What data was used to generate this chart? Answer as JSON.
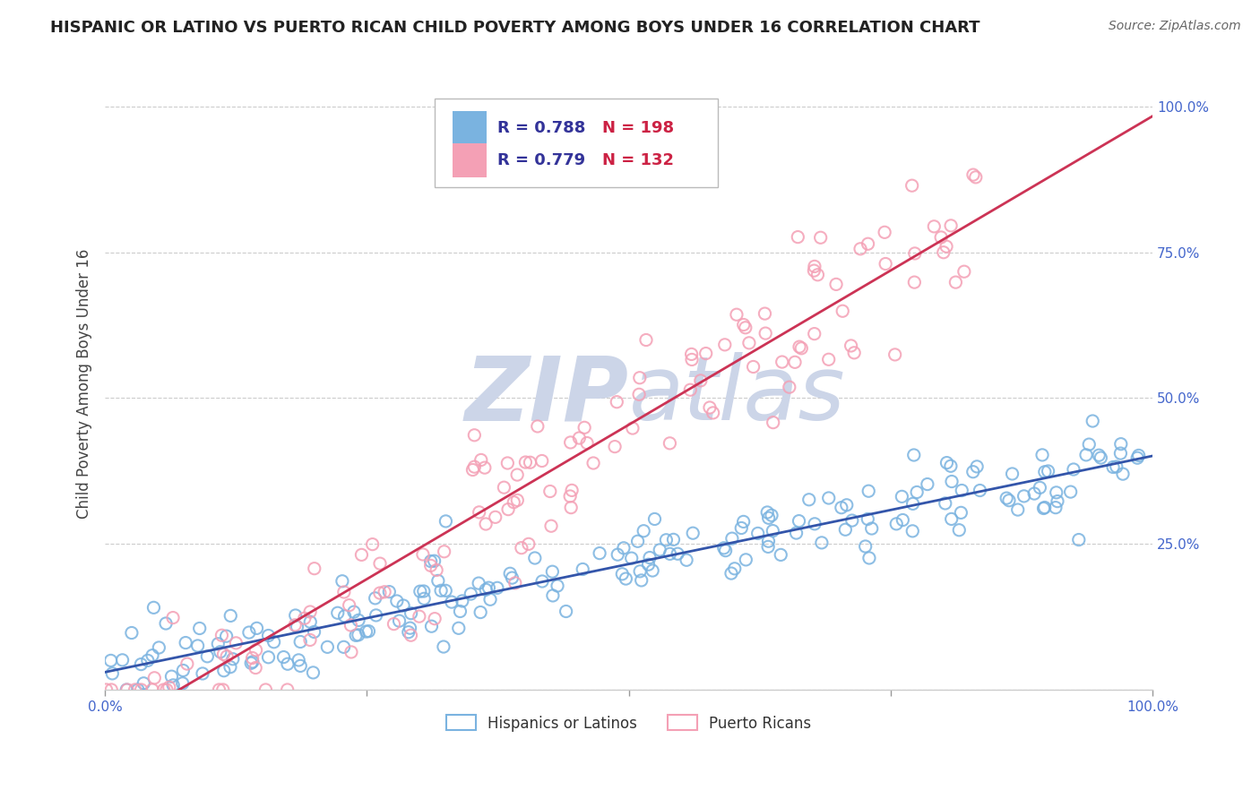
{
  "title": "HISPANIC OR LATINO VS PUERTO RICAN CHILD POVERTY AMONG BOYS UNDER 16 CORRELATION CHART",
  "source": "Source: ZipAtlas.com",
  "ylabel": "Child Poverty Among Boys Under 16",
  "xmin": 0.0,
  "xmax": 1.0,
  "ymin": 0.0,
  "ymax": 1.0,
  "blue_R": 0.788,
  "blue_N": 198,
  "pink_R": 0.779,
  "pink_N": 132,
  "blue_color": "#7ab3e0",
  "pink_color": "#f4a0b5",
  "blue_line_color": "#3355aa",
  "pink_line_color": "#cc3355",
  "blue_label": "Hispanics or Latinos",
  "pink_label": "Puerto Ricans",
  "R_color": "#333399",
  "N_color": "#cc2244",
  "title_color": "#222222",
  "source_color": "#666666",
  "background_color": "#ffffff",
  "watermark_color": "#ccd5e8",
  "grid_color": "#cccccc",
  "tick_label_color": "#4466cc",
  "blue_seed": 42,
  "pink_seed": 7
}
